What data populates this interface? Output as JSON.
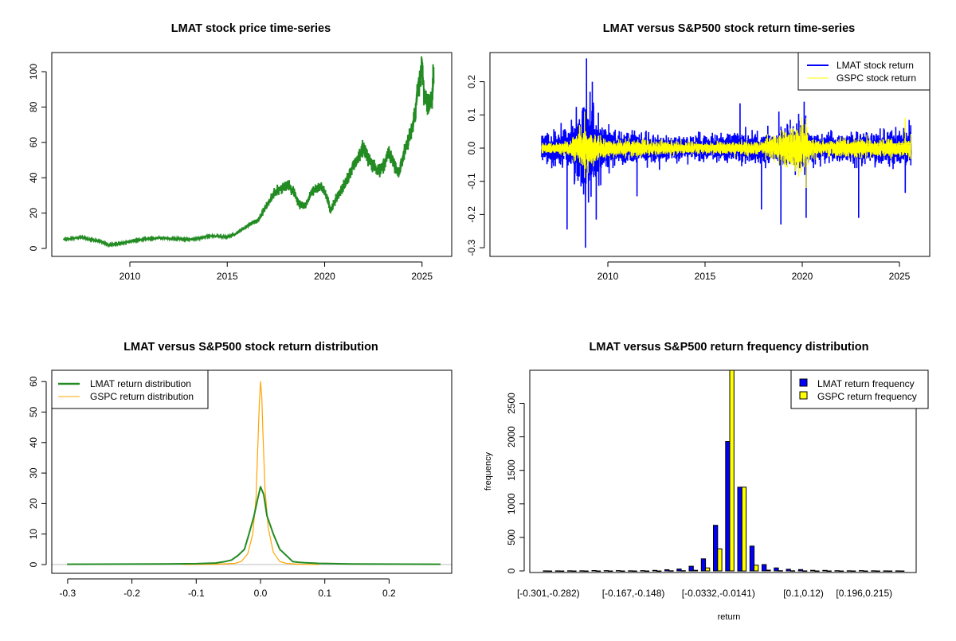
{
  "chart_data": [
    {
      "type": "line",
      "title": "LMAT stock price time-series",
      "xlabel": "",
      "ylabel": "",
      "xlim": [
        2006.0,
        2026.3
      ],
      "ylim": [
        -3,
        110
      ],
      "xticks": [
        "2010",
        "2015",
        "2020",
        "2025"
      ],
      "yticks": [
        "0",
        "20",
        "40",
        "60",
        "80",
        "100"
      ],
      "color": "#228B22",
      "x": [
        2006.6,
        2007.0,
        2007.5,
        2008.0,
        2008.5,
        2008.9,
        2009.3,
        2009.8,
        2010.3,
        2011.0,
        2011.5,
        2012.0,
        2012.5,
        2013.0,
        2013.5,
        2014.0,
        2014.5,
        2015.0,
        2015.4,
        2015.8,
        2016.2,
        2016.6,
        2017.0,
        2017.4,
        2017.8,
        2018.1,
        2018.4,
        2018.7,
        2019.0,
        2019.4,
        2019.8,
        2020.1,
        2020.3,
        2020.6,
        2020.9,
        2021.2,
        2021.5,
        2021.8,
        2022.0,
        2022.3,
        2022.7,
        2023.0,
        2023.3,
        2023.6,
        2023.8,
        2024.1,
        2024.4,
        2024.6,
        2024.8,
        2025.0,
        2025.1,
        2025.3,
        2025.5,
        2025.6
      ],
      "y": [
        5,
        5.5,
        6.5,
        5,
        4,
        2,
        2.5,
        3.5,
        4.5,
        5.5,
        6,
        5.5,
        5.5,
        5,
        5.5,
        7,
        7,
        6.5,
        8,
        11,
        14,
        16,
        24,
        31,
        34,
        36,
        32,
        25,
        24,
        33,
        35,
        30,
        21,
        28,
        34,
        40,
        47,
        52,
        57,
        50,
        44,
        46,
        54,
        47,
        42,
        56,
        64,
        74,
        90,
        104,
        88,
        80,
        84,
        99
      ]
    },
    {
      "type": "line",
      "title": "LMAT versus S&P500 stock return time-series",
      "xlim": [
        2006.0,
        2026.3
      ],
      "ylim": [
        -0.31,
        0.29
      ],
      "xticks": [
        "2010",
        "2015",
        "2020",
        "2025"
      ],
      "yticks": [
        "-0.3",
        "-0.2",
        "-0.1",
        "0.0",
        "0.1",
        "0.2"
      ],
      "legend_position": "top-right",
      "series": [
        {
          "name": "LMAT stock return",
          "color": "#0000FF",
          "volatility_x": [
            2006.6,
            2008.0,
            2008.7,
            2009.0,
            2009.3,
            2009.8,
            2010.5,
            2012,
            2015,
            2017,
            2018.5,
            2019,
            2020.1,
            2020.4,
            2021,
            2023,
            2025,
            2025.6
          ],
          "volatility": [
            0.02,
            0.025,
            0.06,
            0.07,
            0.05,
            0.03,
            0.022,
            0.018,
            0.016,
            0.02,
            0.022,
            0.024,
            0.04,
            0.025,
            0.02,
            0.02,
            0.022,
            0.03
          ],
          "extremes": [
            [
              2008.9,
              0.27
            ],
            [
              2008.85,
              -0.3
            ],
            [
              2007.9,
              -0.245
            ],
            [
              2009.4,
              -0.215
            ],
            [
              2009.2,
              0.2
            ],
            [
              2011.5,
              -0.145
            ],
            [
              2016.8,
              0.135
            ],
            [
              2018.8,
              0.11
            ],
            [
              2018.9,
              -0.23
            ],
            [
              2020.2,
              -0.21
            ],
            [
              2020.1,
              0.14
            ],
            [
              2022.9,
              -0.21
            ],
            [
              2025.3,
              -0.135
            ],
            [
              2025.5,
              0.085
            ],
            [
              2017.9,
              -0.185
            ]
          ]
        },
        {
          "name": "GSPC stock return",
          "color": "#FFFF00",
          "volatility_x": [
            2006.6,
            2008.0,
            2008.8,
            2009.3,
            2010,
            2012,
            2015,
            2018,
            2020.1,
            2020.3,
            2021,
            2022,
            2025,
            2025.6
          ],
          "volatility": [
            0.007,
            0.01,
            0.03,
            0.02,
            0.011,
            0.01,
            0.008,
            0.01,
            0.035,
            0.015,
            0.009,
            0.013,
            0.011,
            0.015
          ],
          "extremes": [
            [
              2008.8,
              0.11
            ],
            [
              2008.8,
              -0.09
            ],
            [
              2020.2,
              -0.12
            ],
            [
              2020.2,
              0.09
            ],
            [
              2025.3,
              0.09
            ]
          ]
        }
      ]
    },
    {
      "type": "line",
      "title": "LMAT versus S&P500 stock return distribution",
      "xlim": [
        -0.325,
        0.297
      ],
      "ylim": [
        -1.5,
        62.5
      ],
      "xticks": [
        "-0.3",
        "-0.2",
        "-0.1",
        "0.0",
        "0.1",
        "0.2"
      ],
      "yticks": [
        "0",
        "10",
        "20",
        "30",
        "40",
        "50",
        "60"
      ],
      "legend_position": "top-left",
      "series": [
        {
          "name": "LMAT return distribution",
          "color": "#228B22",
          "x": [
            -0.301,
            -0.15,
            -0.1,
            -0.07,
            -0.055,
            -0.045,
            -0.035,
            -0.025,
            -0.018,
            -0.01,
            -0.005,
            0,
            0.005,
            0.01,
            0.02,
            0.03,
            0.04,
            0.05,
            0.06,
            0.09,
            0.14,
            0.28
          ],
          "y": [
            0.1,
            0.2,
            0.3,
            0.5,
            1,
            1.5,
            3,
            5,
            10,
            16,
            21,
            25.5,
            23,
            16,
            10,
            5,
            3,
            1,
            0.7,
            0.4,
            0.2,
            0.1
          ]
        },
        {
          "name": "GSPC return distribution",
          "color": "#FFA500",
          "x": [
            -0.12,
            -0.07,
            -0.04,
            -0.03,
            -0.02,
            -0.012,
            -0.007,
            -0.004,
            -0.002,
            0,
            0.002,
            0.004,
            0.007,
            0.012,
            0.02,
            0.03,
            0.04,
            0.06,
            0.09
          ],
          "y": [
            0,
            0.1,
            0.4,
            1,
            3.5,
            10,
            22,
            40,
            52,
            60,
            55,
            42,
            25,
            12,
            4,
            1,
            0.4,
            0.1,
            0
          ]
        }
      ],
      "baseline_color": "#BEBEBE"
    },
    {
      "type": "bar",
      "title": "LMAT versus S&P500 return frequency distribution",
      "xlabel": "return",
      "ylabel": "frequency",
      "ylim": [
        0,
        3000
      ],
      "yticks": [
        "0",
        "500",
        "1000",
        "1500",
        "2000",
        "2500"
      ],
      "legend_position": "top-right",
      "category_labels": [
        {
          "index": 0,
          "label": "[-0.301,-0.282)"
        },
        {
          "index": 7,
          "label": "[-0.167,-0.148)"
        },
        {
          "index": 14,
          "label": "[-0.0332,-0.0141)"
        },
        {
          "index": 21,
          "label": "[0.1,0.12)"
        },
        {
          "index": 26,
          "label": "[0.196,0.215)"
        }
      ],
      "series": [
        {
          "name": "LMAT return frequency",
          "color": "#0000FF",
          "values": [
            1,
            1,
            2,
            2,
            6,
            5,
            5,
            2,
            5,
            8,
            18,
            28,
            70,
            180,
            680,
            1930,
            1250,
            370,
            95,
            45,
            25,
            20,
            10,
            8,
            3,
            2,
            5,
            2,
            1,
            1
          ]
        },
        {
          "name": "GSPC return frequency",
          "color": "#FFFF00",
          "values": [
            0,
            0,
            0,
            0,
            0,
            0,
            0,
            0,
            0,
            0,
            2,
            3,
            10,
            45,
            330,
            3200,
            1250,
            85,
            12,
            4,
            2,
            1,
            0,
            0,
            0,
            0,
            0,
            0,
            0,
            0
          ]
        }
      ]
    }
  ]
}
